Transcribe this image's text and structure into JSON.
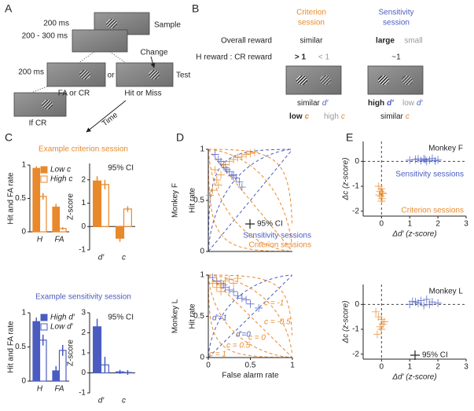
{
  "panel_labels": [
    "A",
    "B",
    "C",
    "D",
    "E"
  ],
  "diagram_a": {
    "sample_time": "200 ms",
    "sample": "Sample",
    "delay": "200 - 300 ms",
    "test_time": "200 ms",
    "or": "or",
    "change": "Change",
    "test": "Test",
    "fa_cr": "FA or CR",
    "hit_miss": "Hit or Miss",
    "if_cr": "If CR",
    "time": "Time"
  },
  "diagram_b": {
    "criterion_title": [
      "Criterion",
      "session"
    ],
    "sensitivity_title": [
      "Sensitivity",
      "session"
    ],
    "overall_reward": {
      "label": "Overall reward",
      "criterion": "similar",
      "sensitivity_high": "large",
      "sensitivity_low": "small"
    },
    "ratio": {
      "label": "H reward : CR reward",
      "criterion_high": "> 1",
      "criterion_low": "< 1",
      "sensitivity": "~1"
    },
    "dprime_row": {
      "criterion": {
        "word": "similar",
        "symbol": "d′"
      },
      "sensitivity_high": {
        "word": "high",
        "symbol": "d′"
      },
      "sensitivity_low": {
        "word": "low",
        "symbol": "d′"
      }
    },
    "c_row": {
      "criterion_low": {
        "word": "low",
        "symbol": "c"
      },
      "criterion_high": {
        "word": "high",
        "symbol": "c"
      },
      "sensitivity": {
        "word": "similar",
        "symbol": "c"
      }
    }
  },
  "chart_data": [
    {
      "type": "bar",
      "title": "Example criterion session",
      "ylabel": "Hit and FA rate",
      "categories": [
        "H",
        "FA"
      ],
      "series": [
        {
          "name": "Low c",
          "color": "#e8892c",
          "filled": true,
          "values": [
            0.95,
            0.37
          ],
          "errors": [
            0.03,
            0.05
          ]
        },
        {
          "name": "High c",
          "color": "#e8892c",
          "filled": false,
          "values": [
            0.53,
            0.05
          ],
          "errors": [
            0.05,
            0.02
          ]
        }
      ],
      "ylim": [
        0,
        1
      ],
      "yticks": [
        0,
        0.5,
        1
      ]
    },
    {
      "type": "bar",
      "annotation": "95% CI",
      "ylabel": "Z-score",
      "categories": [
        "d′",
        "c"
      ],
      "series": [
        {
          "color": "#e8892c",
          "filled": true,
          "values": [
            1.95,
            -0.5
          ],
          "errors": [
            0.2,
            0.15
          ]
        },
        {
          "color": "#e8892c",
          "filled": false,
          "values": [
            1.8,
            0.75
          ],
          "errors": [
            0.2,
            0.12
          ]
        }
      ],
      "ylim": [
        -1,
        2.7
      ],
      "yticks": [
        -1,
        0,
        1,
        2
      ]
    },
    {
      "type": "bar",
      "title": "Example sensitivity session",
      "ylabel": "Hit and FA rate",
      "categories": [
        "H",
        "FA"
      ],
      "series": [
        {
          "name": "High d′",
          "color": "#4a5cc0",
          "filled": true,
          "values": [
            0.87,
            0.15
          ],
          "errors": [
            0.06,
            0.07
          ]
        },
        {
          "name": "Low d′",
          "color": "#4a5cc0",
          "filled": false,
          "values": [
            0.6,
            0.45
          ],
          "errors": [
            0.08,
            0.08
          ]
        }
      ],
      "ylim": [
        0,
        1
      ],
      "yticks": [
        0,
        0.5,
        1
      ]
    },
    {
      "type": "bar",
      "annotation": "95% CI",
      "ylabel": "Z-score",
      "categories": [
        "d′",
        "c"
      ],
      "series": [
        {
          "color": "#4a5cc0",
          "filled": true,
          "values": [
            2.3,
            0.05
          ],
          "errors": [
            0.4,
            0.1
          ]
        },
        {
          "color": "#4a5cc0",
          "filled": false,
          "values": [
            0.4,
            0.02
          ],
          "errors": [
            0.4,
            0.12
          ]
        }
      ],
      "ylim": [
        -1,
        3
      ],
      "yticks": [
        -1,
        0,
        1,
        2,
        3
      ]
    },
    {
      "type": "scatter",
      "row_label": "Monkey F",
      "ylabel": "Hit rate",
      "annotation": "95% CI",
      "xlim": [
        0,
        1
      ],
      "ylim": [
        0,
        1
      ],
      "yticks": [
        0,
        0.5,
        1
      ],
      "dprime_curves": [
        0,
        1,
        2
      ],
      "c_curves": [
        -1,
        -0.5,
        0,
        0.5,
        1
      ],
      "series": [
        {
          "name": "Sensitivity sessions",
          "color": "#4a5cc0",
          "x": [
            0.08,
            0.12,
            0.15,
            0.18,
            0.2,
            0.25,
            0.3,
            0.33,
            0.37,
            0.4,
            0.22,
            0.28
          ],
          "y": [
            0.95,
            0.9,
            0.88,
            0.85,
            0.82,
            0.78,
            0.75,
            0.72,
            0.68,
            0.63,
            0.8,
            0.74
          ]
        },
        {
          "name": "Criterion sessions",
          "color": "#e8892c",
          "x": [
            0.05,
            0.1,
            0.08,
            0.15,
            0.2,
            0.3,
            0.4,
            0.45,
            0.5,
            0.35,
            0.12,
            0.25,
            0.55,
            0.02
          ],
          "y": [
            0.6,
            0.7,
            0.8,
            0.75,
            0.85,
            0.9,
            0.93,
            0.95,
            0.96,
            0.92,
            0.65,
            0.88,
            0.97,
            0.55
          ]
        }
      ]
    },
    {
      "type": "scatter",
      "row_label": "Monkey L",
      "ylabel": "Hit rate",
      "xlabel": "False alarm rate",
      "xlim": [
        0,
        1
      ],
      "ylim": [
        0,
        1
      ],
      "xticks": [
        0,
        0.5,
        1
      ],
      "yticks": [
        0,
        0.5,
        1
      ],
      "dprime_curves": [
        {
          "value": 0,
          "label": "d′=0"
        },
        {
          "value": 1,
          "label": "d′=1"
        }
      ],
      "c_curves": [
        {
          "value": -1,
          "label": "c = -1"
        },
        {
          "value": -0.5,
          "label": "c = -0.5"
        },
        {
          "value": 0,
          "label": "c = 0"
        },
        {
          "value": 0.5,
          "label": "c = 0.5"
        },
        {
          "value": 1,
          "label": "c = 1"
        }
      ],
      "series": [
        {
          "color": "#4a5cc0",
          "x": [
            0.05,
            0.1,
            0.15,
            0.2,
            0.25,
            0.3,
            0.35,
            0.4,
            0.45,
            0.5,
            0.6,
            0.18
          ],
          "y": [
            0.97,
            0.93,
            0.9,
            0.85,
            0.82,
            0.8,
            0.75,
            0.72,
            0.7,
            0.65,
            0.6,
            0.88
          ]
        },
        {
          "color": "#e8892c",
          "x": [
            0.05,
            0.1,
            0.15,
            0.2,
            0.1,
            0.25,
            0.3,
            0.15,
            0.35
          ],
          "y": [
            0.9,
            0.92,
            0.88,
            0.93,
            0.85,
            0.95,
            0.9,
            0.8,
            0.96
          ]
        }
      ]
    },
    {
      "type": "scatter",
      "title": "Monkey F",
      "xlabel": "Δd′ (z-score)",
      "ylabel": "Δc (z-score)",
      "reference_lines": true,
      "xlim": [
        -0.65,
        3
      ],
      "ylim": [
        -2.2,
        0.8
      ],
      "xticks": [
        0,
        1,
        2,
        3
      ],
      "yticks": [
        -2,
        -1,
        0
      ],
      "series": [
        {
          "name": "Sensitivity sessions",
          "color": "#4a5cc0",
          "x": [
            1.0,
            1.2,
            1.4,
            1.5,
            1.6,
            1.7,
            1.8,
            1.9,
            2.0,
            1.3,
            1.55
          ],
          "y": [
            0.05,
            0.08,
            0.03,
            0.1,
            0.0,
            0.05,
            0.12,
            0.02,
            0.06,
            0.1,
            0.07
          ]
        },
        {
          "name": "Criterion sessions",
          "color": "#e8892c",
          "x": [
            -0.1,
            0.0,
            -0.05,
            0.05,
            -0.02,
            0.02,
            0.0,
            -0.08,
            0.03
          ],
          "y": [
            -1.0,
            -1.1,
            -1.2,
            -1.3,
            -1.4,
            -1.5,
            -1.6,
            -1.35,
            -1.25
          ]
        }
      ]
    },
    {
      "type": "scatter",
      "title": "Monkey L",
      "xlabel": "Δd′ (z-score)",
      "ylabel": "Δc (z-score)",
      "annotation": "95% CI",
      "reference_lines": true,
      "xlim": [
        -0.65,
        3
      ],
      "ylim": [
        -2.2,
        0.8
      ],
      "xticks": [
        0,
        1,
        2,
        3
      ],
      "yticks": [
        -2,
        -1,
        0
      ],
      "series": [
        {
          "color": "#4a5cc0",
          "x": [
            1.0,
            1.2,
            1.3,
            1.4,
            1.5,
            1.6,
            1.7,
            1.8,
            2.0,
            1.1
          ],
          "y": [
            0.0,
            0.1,
            0.05,
            0.15,
            -0.05,
            0.2,
            0.0,
            0.1,
            0.05,
            0.12
          ]
        },
        {
          "color": "#e8892c",
          "x": [
            -0.2,
            -0.1,
            0.0,
            0.05,
            -0.05,
            0.0,
            0.1,
            -0.15
          ],
          "y": [
            -0.3,
            -0.5,
            -0.6,
            -0.8,
            -0.9,
            -1.0,
            -0.7,
            -1.2
          ]
        }
      ]
    }
  ]
}
